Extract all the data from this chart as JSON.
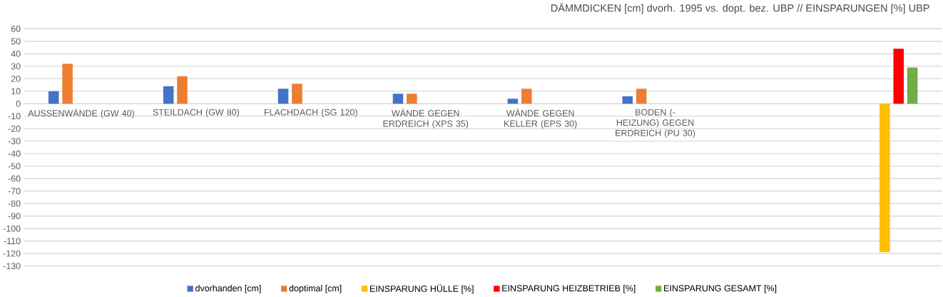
{
  "chart_data": {
    "type": "bar",
    "title": "DÄMMDICKEN [cm] dvorh. 1995 vs. dopt. bez. UBP            //           EINSPARUNGEN [%] UBP",
    "categories": [
      "AUSSENWÄNDE (GW 40)",
      "STEILDACH (GW 80)",
      "FLACHDACH (SG 120)",
      "WÄNDE GEGEN ERDREICH (XPS 35)",
      "WÄNDE GEGEN KELLER (EPS 30)",
      "BODEN (-HEIZUNG) GEGEN ERDREICH (PU 30)",
      null,
      null
    ],
    "series": [
      {
        "name": "dvorhanden [cm]",
        "color": "#4472c4",
        "values": [
          10,
          14,
          12,
          8,
          4,
          6,
          null,
          null
        ]
      },
      {
        "name": "doptimal [cm]",
        "color": "#ed7d31",
        "values": [
          32,
          22,
          16,
          8,
          12,
          12,
          null,
          null
        ]
      },
      {
        "name": "EINSPARUNG HÜLLE [%]",
        "color": "#ffc000",
        "values": [
          null,
          null,
          null,
          null,
          null,
          null,
          null,
          -119
        ]
      },
      {
        "name": "EINSPARUNG HEIZBETRIEB [%]",
        "color": "#ff0000",
        "values": [
          null,
          null,
          null,
          null,
          null,
          null,
          null,
          44
        ]
      },
      {
        "name": "EINSPARUNG GESAMT [%]",
        "color": "#70ad47",
        "values": [
          null,
          null,
          null,
          null,
          null,
          null,
          null,
          29
        ]
      }
    ],
    "ylim": [
      -130,
      60
    ],
    "yticks": [
      -130,
      -120,
      -110,
      -100,
      -90,
      -80,
      -70,
      -60,
      -50,
      -40,
      -30,
      -20,
      -10,
      0,
      10,
      20,
      30,
      40,
      50,
      60
    ],
    "grid": "y",
    "legend": "bottom"
  }
}
